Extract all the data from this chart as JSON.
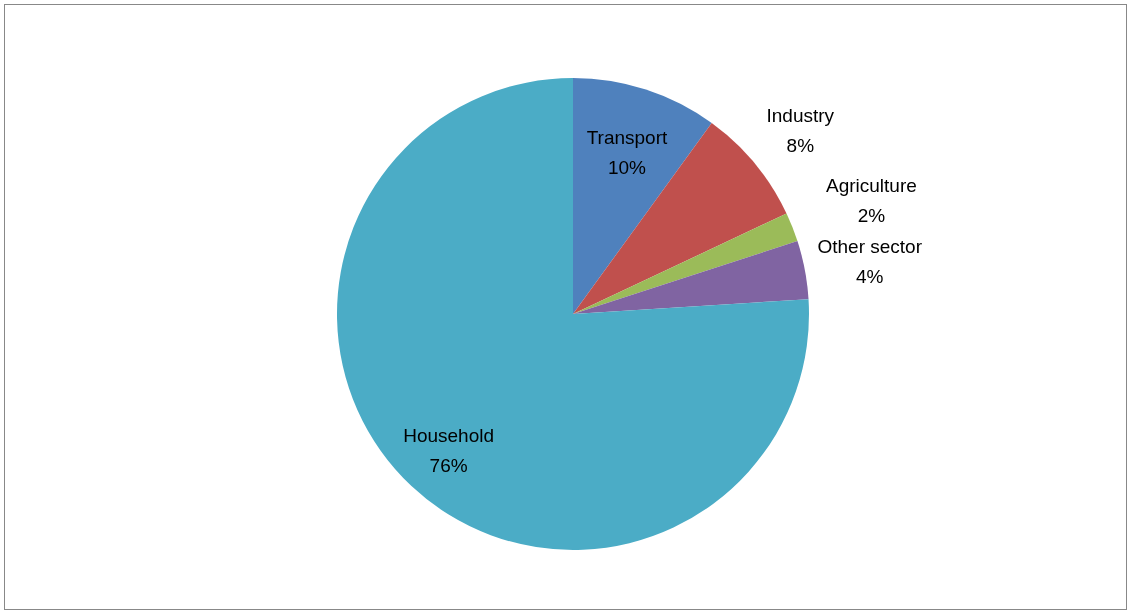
{
  "chart_data": {
    "type": "pie",
    "categories": [
      "Transport",
      "Industry",
      "Agriculture",
      "Other sector",
      "Household"
    ],
    "values": [
      10,
      8,
      2,
      4,
      76
    ],
    "colors": [
      "#4f81bd",
      "#c0504d",
      "#9bbb59",
      "#8064a2",
      "#4bacc6"
    ],
    "value_labels": [
      "10%",
      "8%",
      "2%",
      "4%",
      "76%"
    ]
  }
}
